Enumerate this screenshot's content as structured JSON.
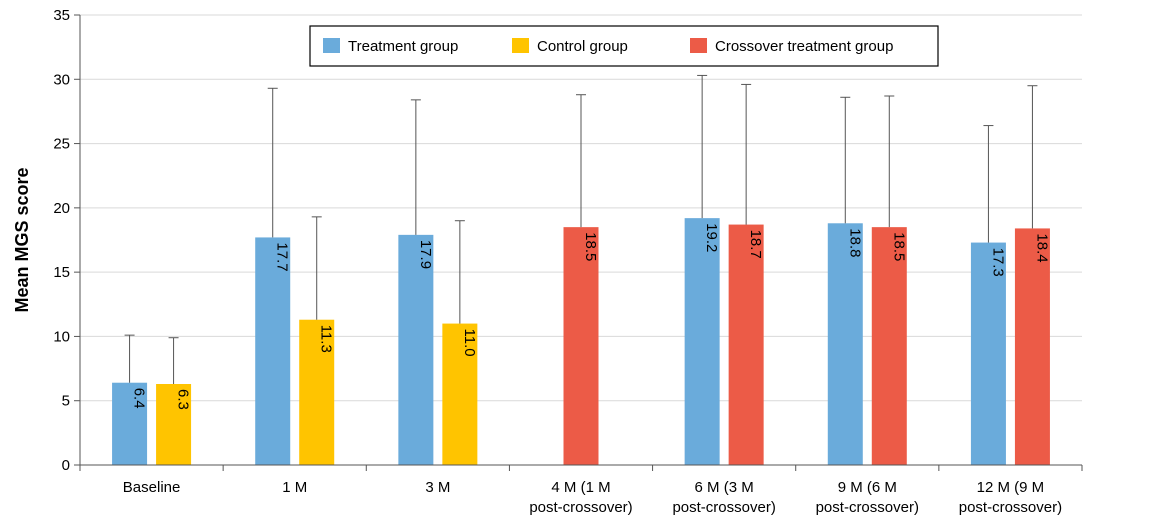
{
  "chart_data": {
    "type": "bar",
    "ylabel": "Mean MGS score",
    "xlabel": "",
    "ylim": [
      0,
      35
    ],
    "yticks": [
      0,
      5,
      10,
      15,
      20,
      25,
      30,
      35
    ],
    "grid": "horizontal",
    "legend_position": "top-center",
    "categories": [
      [
        "Baseline"
      ],
      [
        "1 M"
      ],
      [
        "3 M"
      ],
      [
        "4 M (1 M",
        "post-crossover)"
      ],
      [
        "6 M (3 M",
        "post-crossover)"
      ],
      [
        "9 M (6 M",
        "post-crossover)"
      ],
      [
        "12 M (9 M",
        "post-crossover)"
      ]
    ],
    "series": [
      {
        "name": "Treatment group",
        "color": "#6aabdb",
        "values": [
          6.4,
          17.7,
          17.9,
          null,
          19.2,
          18.8,
          17.3
        ],
        "error_upper": [
          10.1,
          29.3,
          28.4,
          null,
          30.3,
          28.6,
          26.4
        ]
      },
      {
        "name": "Control group",
        "color": "#ffc400",
        "values": [
          6.3,
          11.3,
          11.0,
          null,
          null,
          null,
          null
        ],
        "error_upper": [
          9.9,
          19.3,
          19.0,
          null,
          null,
          null,
          null
        ]
      },
      {
        "name": "Crossover treatment group",
        "color": "#ec5b47",
        "values": [
          null,
          null,
          null,
          18.5,
          18.7,
          18.5,
          18.4
        ],
        "error_upper": [
          null,
          null,
          null,
          28.8,
          29.6,
          28.7,
          29.5
        ]
      }
    ],
    "data_labels": [
      [
        "6.4",
        "17.7",
        "17.9",
        "",
        "19.2",
        "18.8",
        "17.3"
      ],
      [
        "6.3",
        "11.3",
        "11.0",
        "",
        "",
        "",
        ""
      ],
      [
        "",
        "",
        "",
        "18.5",
        "18.7",
        "18.5",
        "18.4"
      ]
    ]
  }
}
